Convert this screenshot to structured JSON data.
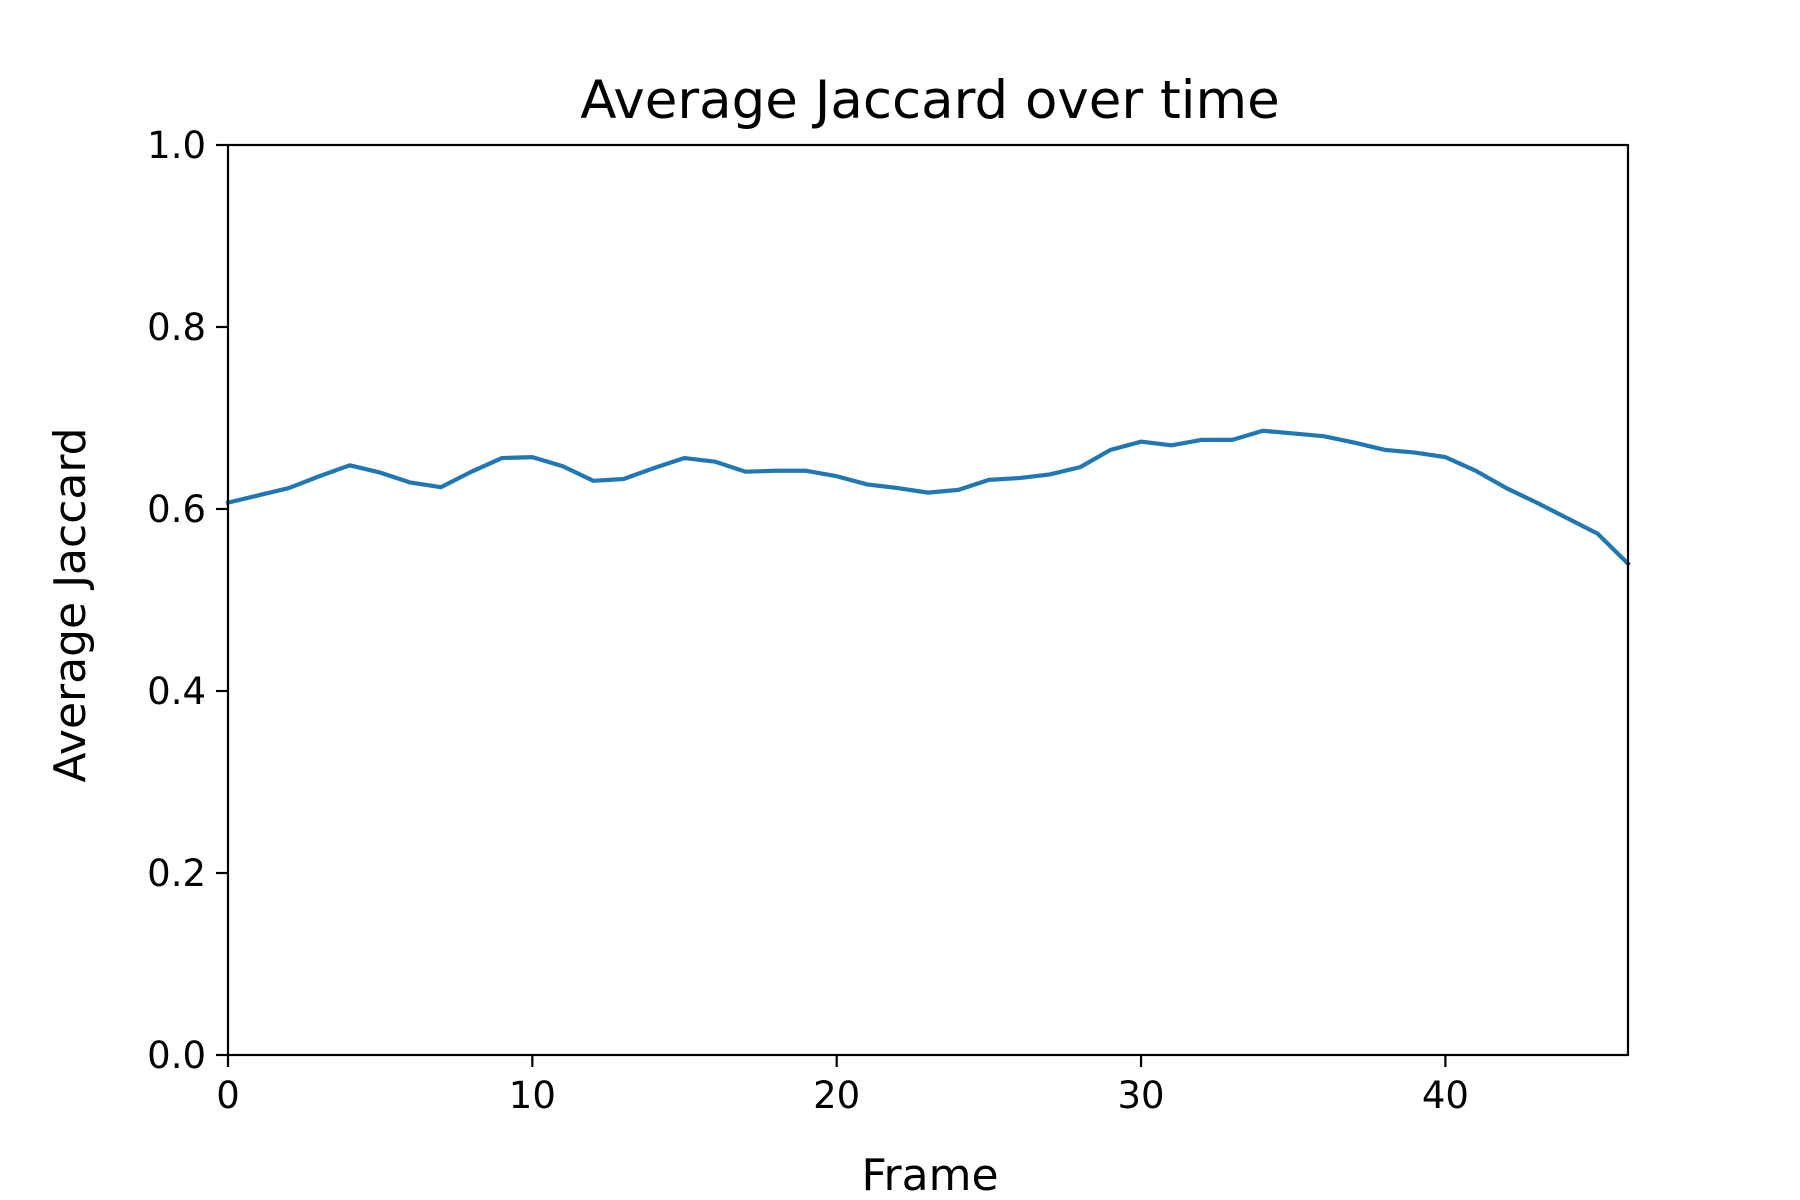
{
  "chart_data": {
    "type": "line",
    "title": "Average Jaccard over time",
    "xlabel": "Frame",
    "ylabel": "Average Jaccard",
    "xlim": [
      0,
      46
    ],
    "ylim": [
      0.0,
      1.0
    ],
    "xticks": [
      0,
      10,
      20,
      30,
      40
    ],
    "xtick_labels": [
      "0",
      "10",
      "20",
      "30",
      "40"
    ],
    "yticks": [
      0.0,
      0.2,
      0.4,
      0.6,
      0.8,
      1.0
    ],
    "ytick_labels": [
      "0.0",
      "0.2",
      "0.4",
      "0.6",
      "0.8",
      "1.0"
    ],
    "grid": false,
    "series": [
      {
        "color": "#1f77b4",
        "x": [
          0,
          1,
          2,
          3,
          4,
          5,
          6,
          7,
          8,
          9,
          10,
          11,
          12,
          13,
          14,
          15,
          16,
          17,
          18,
          19,
          20,
          21,
          22,
          23,
          24,
          25,
          26,
          27,
          28,
          29,
          30,
          31,
          32,
          33,
          34,
          35,
          36,
          37,
          38,
          39,
          40,
          41,
          42,
          43,
          44,
          45,
          46
        ],
        "y": [
          0.607,
          0.615,
          0.623,
          0.636,
          0.648,
          0.64,
          0.629,
          0.624,
          0.641,
          0.656,
          0.657,
          0.647,
          0.631,
          0.633,
          0.645,
          0.656,
          0.652,
          0.641,
          0.642,
          0.642,
          0.636,
          0.627,
          0.623,
          0.618,
          0.621,
          0.632,
          0.634,
          0.638,
          0.646,
          0.665,
          0.674,
          0.67,
          0.676,
          0.676,
          0.686,
          0.683,
          0.68,
          0.673,
          0.665,
          0.662,
          0.657,
          0.642,
          0.623,
          0.607,
          0.59,
          0.573,
          0.54
        ]
      }
    ]
  }
}
